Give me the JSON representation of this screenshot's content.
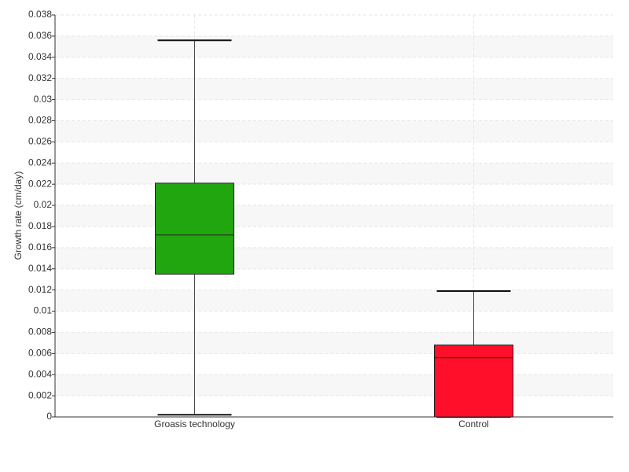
{
  "chart_data": {
    "type": "box",
    "y_label": "Growth rate (cm/day)",
    "categories": [
      "Groasis technology",
      "Control"
    ],
    "boxes": [
      {
        "min": 0.0002,
        "q1": 0.0135,
        "median": 0.0172,
        "q3": 0.0221,
        "max": 0.0356,
        "color": "#22a60f"
      },
      {
        "min": 0,
        "q1": 0,
        "median": 0.0056,
        "q3": 0.0068,
        "max": 0.0119,
        "color": "#ff0f29"
      }
    ],
    "ylim": [
      0,
      0.038
    ],
    "yticks": [
      0,
      0.002,
      0.004,
      0.006,
      0.008,
      0.01,
      0.012,
      0.014,
      0.016,
      0.018,
      0.02,
      0.022,
      0.024,
      0.026,
      0.028,
      0.03,
      0.032,
      0.034,
      0.036,
      0.038
    ],
    "grid": true
  }
}
